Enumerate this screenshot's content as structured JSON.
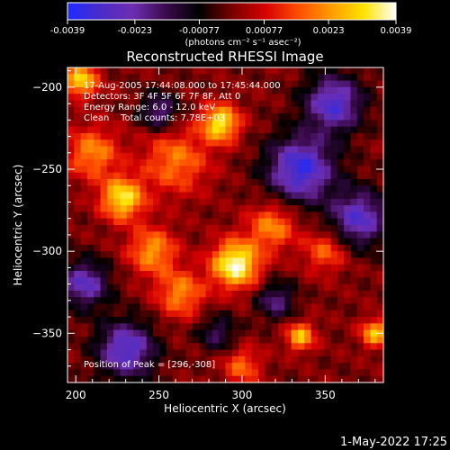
{
  "chart_data": {
    "type": "heatmap",
    "title": "Reconstructed RHESSI Image",
    "xlabel": "Heliocentric X (arcsec)",
    "ylabel": "Heliocentric Y (arcsec)",
    "xlim": [
      195,
      385
    ],
    "ylim": [
      -380,
      -188
    ],
    "x_ticks": [
      200,
      250,
      300,
      350
    ],
    "y_ticks": [
      -200,
      -250,
      -300,
      -350
    ],
    "colorbar": {
      "min": -0.0039,
      "max": 0.0039,
      "ticks": [
        "-0.0039",
        "-0.0023",
        "-0.00077",
        "0.00077",
        "0.0023",
        "0.0039"
      ],
      "units": "(photons cm⁻² s⁻¹ asec⁻²)",
      "colors": [
        "#1f2bff",
        "#4b2cc8",
        "#6e2eb0",
        "#3a0a4a",
        "#000000",
        "#7a0000",
        "#d40000",
        "#ff4b00",
        "#ff9a00",
        "#ffe200",
        "#ffffff"
      ]
    },
    "annotations": [
      "17-Aug-2005 17:44:08.000 to 17:45:44.000",
      "Detectors: 3F 4F 5F 6F 7F 8F, Att 0",
      "Energy Range: 6.0 - 12.0 keV",
      "Clean    Total counts: 7.78E+03"
    ],
    "peak_label": "Position of Peak = [296,-308]",
    "peak": {
      "x": 296,
      "y": -308
    },
    "grid": false
  },
  "footer_timestamp": "1-May-2022 17:25"
}
